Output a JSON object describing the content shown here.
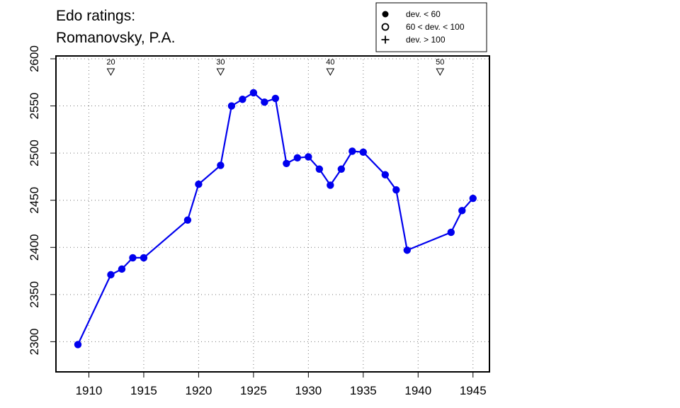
{
  "chart_data": {
    "type": "line",
    "title_lines": [
      "Edo ratings:",
      "Romanovsky, P.A."
    ],
    "xlabel": "",
    "ylabel": "",
    "xlim": [
      1907.0,
      1946.5
    ],
    "ylim": [
      2268,
      2603
    ],
    "x_ticks": [
      1910,
      1915,
      1920,
      1925,
      1930,
      1935,
      1940,
      1945
    ],
    "y_ticks": [
      2300,
      2350,
      2400,
      2450,
      2500,
      2550,
      2600
    ],
    "grid": true,
    "series_color": "#0000ee",
    "age_markers": [
      {
        "year": 1912,
        "label": "20"
      },
      {
        "year": 1922,
        "label": "30"
      },
      {
        "year": 1932,
        "label": "40"
      },
      {
        "year": 1942,
        "label": "50"
      }
    ],
    "legend": {
      "position": "top-right",
      "entries": [
        {
          "symbol": "filled-circle",
          "label": "dev. < 60"
        },
        {
          "symbol": "open-circle",
          "label": "60 < dev. < 100"
        },
        {
          "symbol": "plus",
          "label": "dev. > 100"
        }
      ]
    },
    "series": [
      {
        "x": [
          1909,
          1912,
          1913,
          1914,
          1915,
          1919,
          1920,
          1922,
          1923,
          1924,
          1925,
          1926,
          1927,
          1928,
          1929,
          1930,
          1931,
          1932,
          1933,
          1934,
          1935,
          1937,
          1938,
          1939,
          1943,
          1944,
          1945
        ],
        "y": [
          2297,
          2371,
          2377,
          2389,
          2389,
          2429,
          2467,
          2487,
          2550,
          2557,
          2564,
          2554,
          2558,
          2489,
          2495,
          2496,
          2483,
          2466,
          2483,
          2502,
          2501,
          2477,
          2461,
          2397,
          2416,
          2439,
          2452
        ]
      }
    ]
  }
}
